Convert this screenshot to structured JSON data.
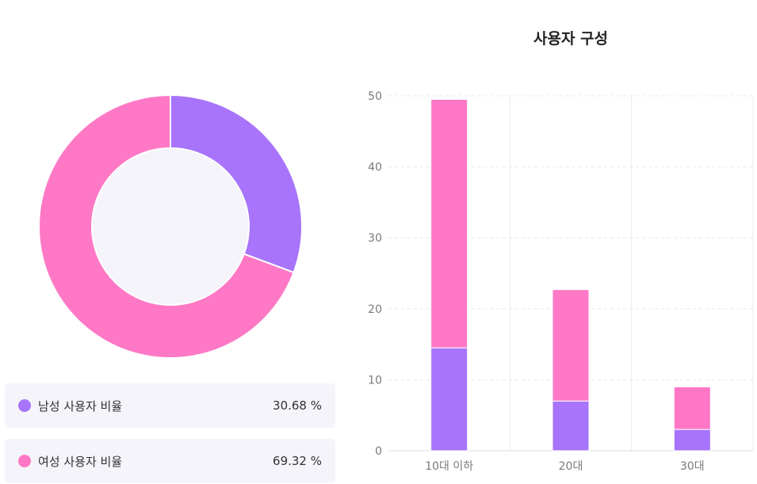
{
  "colors": {
    "male": "#a774fb",
    "female": "#fe78c6",
    "donut_hole": "#f4f4fa"
  },
  "legend": [
    {
      "label": "남성 사용자 비율",
      "value": "30.68 %",
      "color": "#a774fb"
    },
    {
      "label": "여성 사용자 비율",
      "value": "69.32 %",
      "color": "#fe78c6"
    }
  ],
  "chart_data": [
    {
      "type": "pie",
      "donut": true,
      "slices": [
        {
          "label": "남성 사용자 비율",
          "value": 30.68,
          "color": "#a774fb"
        },
        {
          "label": "여성 사용자 비율",
          "value": 69.32,
          "color": "#fe78c6"
        }
      ]
    },
    {
      "type": "bar",
      "stacked": true,
      "title": "사용자 구성",
      "categories": [
        "10대 이하",
        "20대",
        "30대"
      ],
      "series": [
        {
          "color": "#a774fb",
          "values": [
            14.5,
            7,
            3
          ]
        },
        {
          "color": "#fe78c6",
          "values": [
            35,
            15.7,
            6
          ]
        }
      ],
      "ylim": [
        0,
        50
      ],
      "yticks": [
        0,
        10,
        20,
        30,
        40,
        50
      ],
      "grid": true
    }
  ]
}
